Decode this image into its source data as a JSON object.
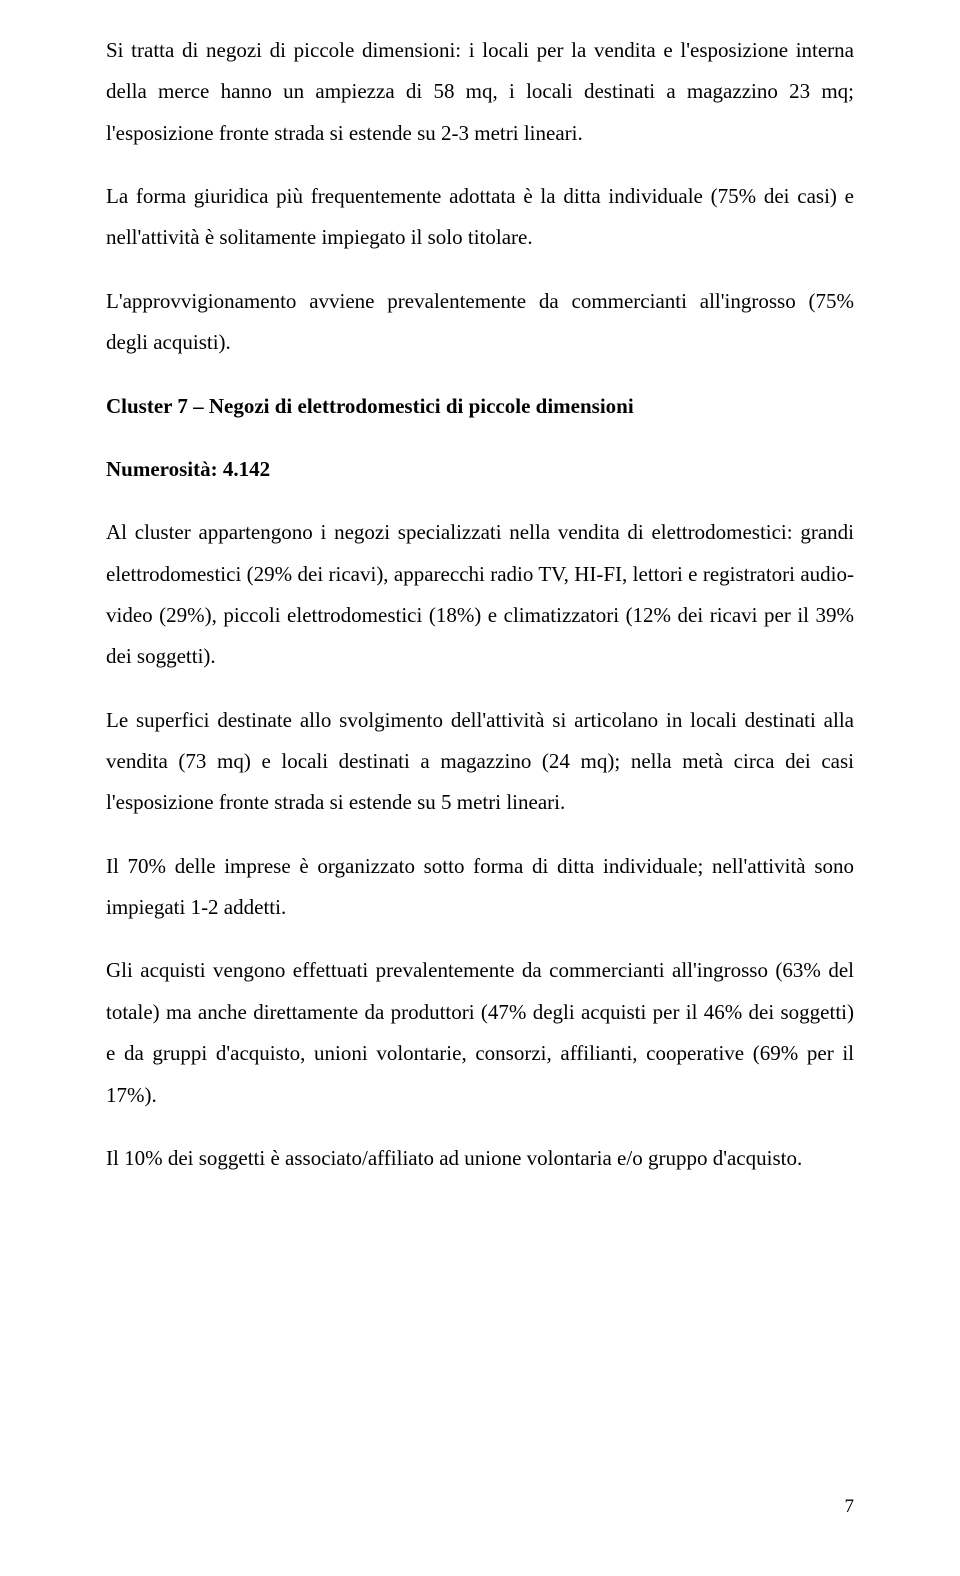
{
  "paragraphs": {
    "p1": "Si tratta di negozi di piccole dimensioni: i locali per la vendita e l'esposizione interna della merce hanno un ampiezza di 58 mq, i locali destinati a magazzino 23 mq; l'esposizione fronte strada si estende su 2-3 metri lineari.",
    "p2": "La forma giuridica più frequentemente adottata è la ditta individuale (75% dei casi) e nell'attività è solitamente impiegato il solo titolare.",
    "p3": "L'approvvigionamento avviene prevalentemente da commercianti all'ingrosso (75% degli acquisti).",
    "heading": "Cluster 7 – Negozi di elettrodomestici di piccole dimensioni",
    "numerosita": "Numerosità: 4.142",
    "p4": "Al cluster appartengono i negozi specializzati nella vendita di elettrodomestici: grandi elettrodomestici (29% dei ricavi), apparecchi radio TV, HI-FI, lettori e registratori audio-video (29%), piccoli elettrodomestici (18%) e climatizzatori (12% dei ricavi per il 39% dei soggetti).",
    "p5": "Le superfici destinate allo svolgimento dell'attività si articolano in locali destinati alla vendita (73 mq) e locali destinati a magazzino (24 mq); nella metà circa dei casi l'esposizione fronte strada si estende su 5 metri lineari.",
    "p6": "Il 70% delle imprese è organizzato sotto forma di ditta individuale; nell'attività sono impiegati 1-2 addetti.",
    "p7": "Gli acquisti vengono effettuati prevalentemente da commercianti all'ingrosso (63% del totale) ma anche direttamente da produttori (47% degli acquisti per il 46% dei soggetti) e da gruppi d'acquisto, unioni volontarie, consorzi, affilianti, cooperative (69% per il 17%).",
    "p8": "Il 10% dei soggetti è associato/affiliato ad unione volontaria e/o gruppo d'acquisto."
  },
  "pageNumber": "7"
}
